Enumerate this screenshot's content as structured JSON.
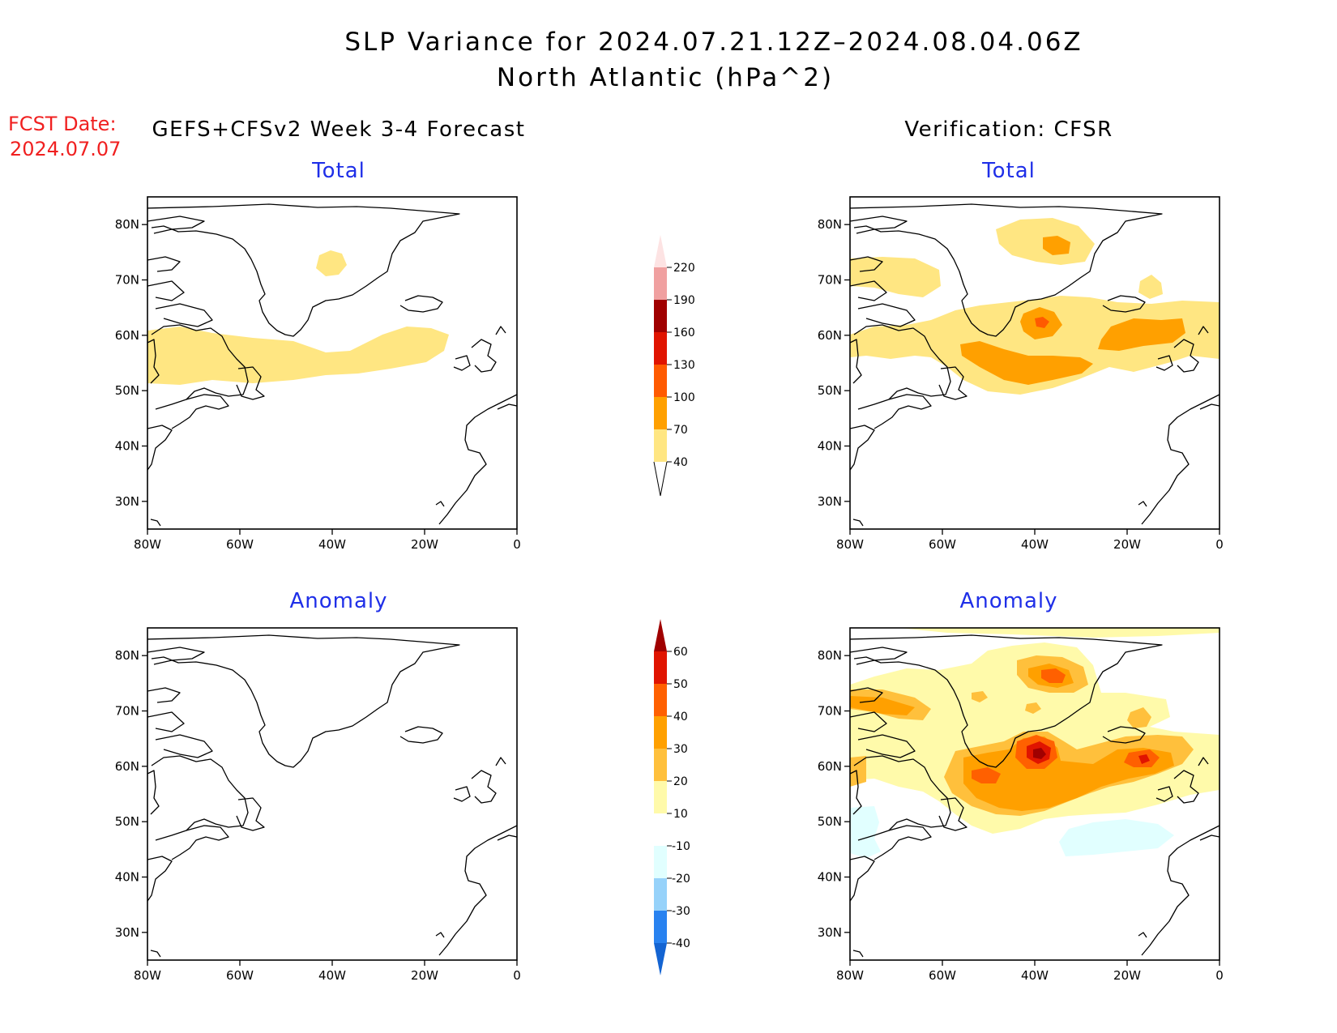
{
  "header": {
    "title_line1": "SLP Variance for 2024.07.21.12Z–2024.08.04.06Z",
    "title_line2": "North Atlantic (hPa^2)"
  },
  "forecast": {
    "date_label": "FCST Date:",
    "date_value": "2024.07.07",
    "title": "GEFS+CFSv2 Week 3-4 Forecast"
  },
  "verification": {
    "title": "Verification: CFSR"
  },
  "panels": {
    "total_label": "Total",
    "anomaly_label": "Anomaly"
  },
  "axes": {
    "lon_labels": [
      "80W",
      "60W",
      "40W",
      "20W",
      "0"
    ],
    "lat_labels": [
      "80N",
      "70N",
      "60N",
      "50N",
      "40N",
      "30N"
    ],
    "lon_range": [
      -80,
      0
    ],
    "lat_range": [
      25,
      85
    ]
  },
  "colorbar_total": {
    "levels": [
      "40",
      "70",
      "100",
      "130",
      "160",
      "190",
      "220"
    ],
    "colors": [
      "#ffe682",
      "#ffa000",
      "#ff5a00",
      "#e01400",
      "#a00000",
      "#f0a0a0",
      "#fde3e3"
    ]
  },
  "colorbar_anomaly": {
    "levels": [
      "-40",
      "-30",
      "-20",
      "-10",
      "10",
      "20",
      "30",
      "40",
      "50",
      "60"
    ],
    "colors": [
      "#1464d2",
      "#2882f0",
      "#96d2fa",
      "#e1ffff",
      "#ffffff",
      "#fffaaa",
      "#ffc03c",
      "#ffa000",
      "#ff6000",
      "#e01400",
      "#a00000"
    ]
  },
  "colors": {
    "c_40": "#ffe682",
    "c_70": "#ffa000",
    "c_100": "#ff5a00",
    "a_10": "#fffaaa",
    "a_20": "#ffc03c",
    "a_30": "#ffa000",
    "a_40": "#ff6000",
    "a_50": "#e01400",
    "a_60": "#a00000",
    "a_neg10": "#e1ffff"
  }
}
